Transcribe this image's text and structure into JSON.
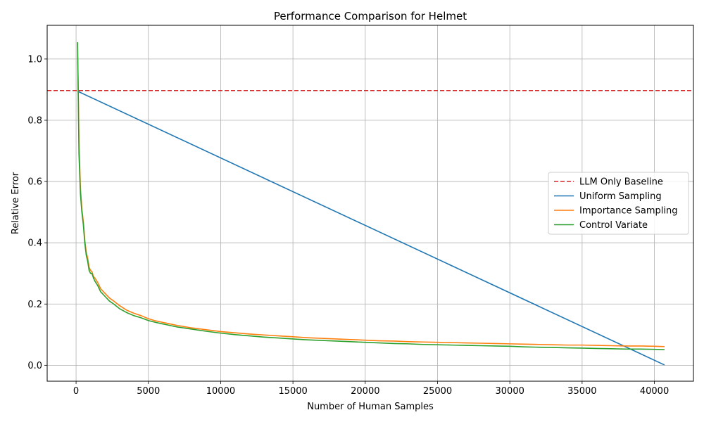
{
  "chart_data": {
    "type": "line",
    "title": "Performance Comparison for Helmet",
    "xlabel": "Number of Human Samples",
    "ylabel": "Relative Error",
    "xlim": [
      -2000,
      42700
    ],
    "ylim": [
      -0.052,
      1.11
    ],
    "xticks": [
      0,
      5000,
      10000,
      15000,
      20000,
      25000,
      30000,
      35000,
      40000
    ],
    "yticks": [
      0.0,
      0.2,
      0.4,
      0.6,
      0.8,
      1.0
    ],
    "xtick_labels": [
      "0",
      "5000",
      "10000",
      "15000",
      "20000",
      "25000",
      "30000",
      "35000",
      "40000"
    ],
    "ytick_labels": [
      "0.0",
      "0.2",
      "0.4",
      "0.6",
      "0.8",
      "1.0"
    ],
    "grid": true,
    "legend_position": "center-right",
    "baseline": {
      "name": "LLM Only Baseline",
      "value": 0.897,
      "color": "#d62728",
      "style": "dashed"
    },
    "series": [
      {
        "name": "Uniform Sampling",
        "color": "#1f77b4",
        "x": [
          100,
          40700
        ],
        "y": [
          0.895,
          0.001
        ]
      },
      {
        "name": "Importance Sampling",
        "color": "#ff7f0e",
        "x": [
          100,
          150,
          200,
          300,
          400,
          500,
          600,
          700,
          800,
          900,
          1000,
          1100,
          1200,
          1300,
          1500,
          1700,
          2000,
          2300,
          2600,
          3000,
          3500,
          4000,
          4500,
          5000,
          5500,
          6000,
          6500,
          7000,
          8000,
          9000,
          10000,
          11000,
          12000,
          13000,
          14000,
          15000,
          16000,
          17000,
          18000,
          19000,
          20000,
          21000,
          22000,
          23000,
          24000,
          25000,
          26000,
          27000,
          28000,
          29000,
          30000,
          31000,
          32000,
          33000,
          34000,
          35000,
          36000,
          37000,
          38000,
          39000,
          40000,
          40700
        ],
        "y": [
          1.05,
          0.9,
          0.73,
          0.58,
          0.51,
          0.47,
          0.41,
          0.37,
          0.35,
          0.32,
          0.31,
          0.305,
          0.29,
          0.285,
          0.27,
          0.25,
          0.235,
          0.22,
          0.21,
          0.195,
          0.18,
          0.17,
          0.162,
          0.152,
          0.145,
          0.14,
          0.135,
          0.13,
          0.122,
          0.116,
          0.11,
          0.106,
          0.102,
          0.099,
          0.096,
          0.093,
          0.09,
          0.088,
          0.086,
          0.084,
          0.082,
          0.08,
          0.079,
          0.077,
          0.076,
          0.075,
          0.074,
          0.073,
          0.072,
          0.071,
          0.07,
          0.069,
          0.068,
          0.067,
          0.066,
          0.066,
          0.065,
          0.064,
          0.063,
          0.063,
          0.062,
          0.061
        ]
      },
      {
        "name": "Control Variate",
        "color": "#2ca02c",
        "x": [
          100,
          150,
          200,
          300,
          400,
          500,
          600,
          700,
          800,
          900,
          1000,
          1100,
          1200,
          1300,
          1500,
          1700,
          2000,
          2300,
          2600,
          3000,
          3500,
          4000,
          4500,
          5000,
          5500,
          6000,
          6500,
          7000,
          8000,
          9000,
          10000,
          11000,
          12000,
          13000,
          14000,
          15000,
          16000,
          17000,
          18000,
          19000,
          20000,
          21000,
          22000,
          23000,
          24000,
          25000,
          26000,
          27000,
          28000,
          29000,
          30000,
          31000,
          32000,
          33000,
          34000,
          35000,
          36000,
          37000,
          38000,
          39000,
          40000,
          40700
        ],
        "y": [
          1.055,
          0.88,
          0.69,
          0.56,
          0.5,
          0.46,
          0.4,
          0.36,
          0.34,
          0.31,
          0.3,
          0.3,
          0.285,
          0.275,
          0.26,
          0.24,
          0.225,
          0.21,
          0.2,
          0.185,
          0.172,
          0.162,
          0.155,
          0.146,
          0.14,
          0.135,
          0.13,
          0.125,
          0.118,
          0.111,
          0.105,
          0.1,
          0.096,
          0.092,
          0.089,
          0.086,
          0.083,
          0.081,
          0.079,
          0.077,
          0.075,
          0.073,
          0.071,
          0.07,
          0.068,
          0.067,
          0.066,
          0.065,
          0.064,
          0.063,
          0.062,
          0.06,
          0.059,
          0.058,
          0.057,
          0.056,
          0.055,
          0.054,
          0.053,
          0.053,
          0.052,
          0.051
        ]
      }
    ]
  }
}
